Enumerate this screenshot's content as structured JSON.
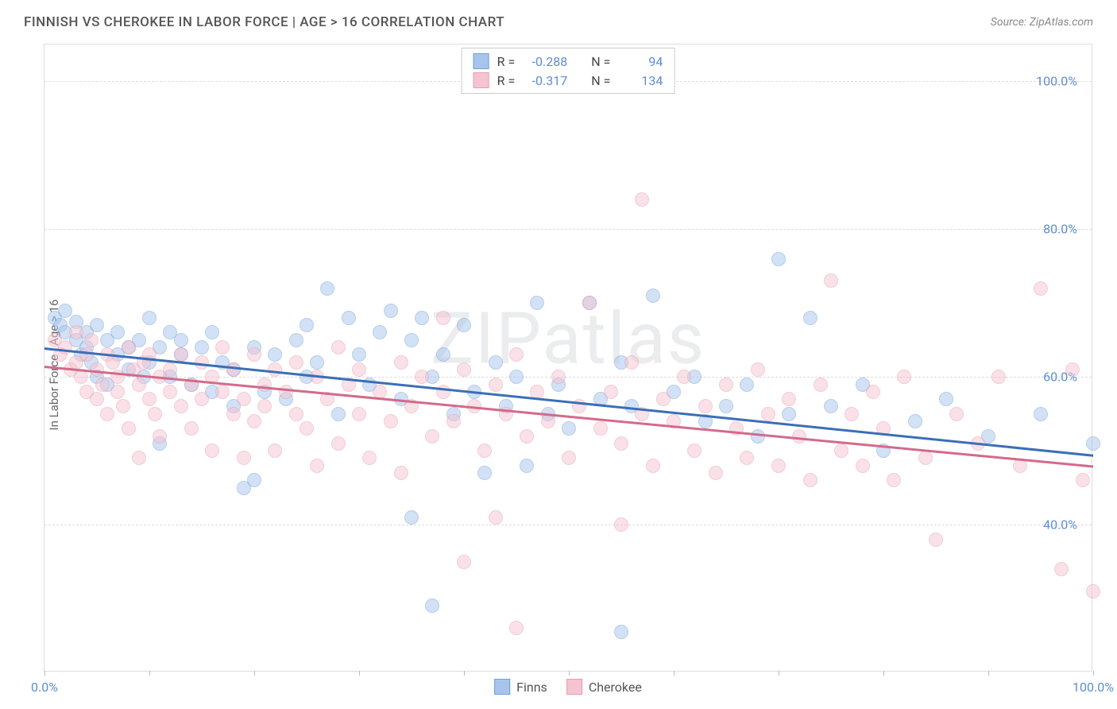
{
  "title": "FINNISH VS CHEROKEE IN LABOR FORCE | AGE > 16 CORRELATION CHART",
  "source_label": "Source: ",
  "source_name": "ZipAtlas.com",
  "ylabel": "In Labor Force | Age > 16",
  "watermark": "ZIPatlas",
  "chart": {
    "type": "scatter",
    "xlim": [
      0,
      100
    ],
    "ylim": [
      20,
      105
    ],
    "x_ticks": [
      0,
      10,
      20,
      30,
      40,
      50,
      60,
      70,
      80,
      90,
      100
    ],
    "x_tick_labels_shown": {
      "0": "0.0%",
      "100": "100.0%"
    },
    "y_gridlines": [
      40,
      60,
      80,
      100
    ],
    "y_tick_labels": {
      "40": "40.0%",
      "60": "60.0%",
      "80": "80.0%",
      "100": "100.0%"
    },
    "background_color": "#ffffff",
    "grid_color": "#dddddd",
    "point_radius": 9,
    "point_opacity": 0.5,
    "series": [
      {
        "name": "Finns",
        "color_fill": "#a7c5ec",
        "color_stroke": "#6f9fd8",
        "line_color": "#3a6fb7",
        "R": "-0.288",
        "N": "94",
        "trend": {
          "x1": 0,
          "y1": 64,
          "x2": 100,
          "y2": 49.5
        },
        "points": [
          [
            1,
            68
          ],
          [
            1.5,
            67
          ],
          [
            2,
            66
          ],
          [
            2,
            69
          ],
          [
            3,
            65
          ],
          [
            3,
            67.5
          ],
          [
            3.5,
            63
          ],
          [
            4,
            66
          ],
          [
            4,
            64
          ],
          [
            4.5,
            62
          ],
          [
            5,
            67
          ],
          [
            5,
            60
          ],
          [
            6,
            65
          ],
          [
            6,
            59
          ],
          [
            7,
            63
          ],
          [
            7,
            66
          ],
          [
            8,
            64
          ],
          [
            8,
            61
          ],
          [
            9,
            65
          ],
          [
            9.5,
            60
          ],
          [
            10,
            68
          ],
          [
            10,
            62
          ],
          [
            11,
            64
          ],
          [
            11,
            51
          ],
          [
            12,
            66
          ],
          [
            12,
            60
          ],
          [
            13,
            65
          ],
          [
            13,
            63
          ],
          [
            14,
            59
          ],
          [
            15,
            64
          ],
          [
            16,
            66
          ],
          [
            16,
            58
          ],
          [
            17,
            62
          ],
          [
            18,
            61
          ],
          [
            18,
            56
          ],
          [
            19,
            45
          ],
          [
            20,
            46
          ],
          [
            20,
            64
          ],
          [
            21,
            58
          ],
          [
            22,
            63
          ],
          [
            23,
            57
          ],
          [
            24,
            65
          ],
          [
            25,
            67
          ],
          [
            25,
            60
          ],
          [
            26,
            62
          ],
          [
            27,
            72
          ],
          [
            28,
            55
          ],
          [
            29,
            68
          ],
          [
            30,
            63
          ],
          [
            31,
            59
          ],
          [
            32,
            66
          ],
          [
            33,
            69
          ],
          [
            34,
            57
          ],
          [
            35,
            65
          ],
          [
            35,
            41
          ],
          [
            36,
            68
          ],
          [
            37,
            60
          ],
          [
            37,
            29
          ],
          [
            38,
            63
          ],
          [
            39,
            55
          ],
          [
            40,
            67
          ],
          [
            41,
            58
          ],
          [
            42,
            47
          ],
          [
            43,
            62
          ],
          [
            44,
            56
          ],
          [
            45,
            60
          ],
          [
            46,
            48
          ],
          [
            47,
            70
          ],
          [
            48,
            55
          ],
          [
            49,
            59
          ],
          [
            50,
            53
          ],
          [
            52,
            70
          ],
          [
            53,
            57
          ],
          [
            55,
            62
          ],
          [
            55,
            25.5
          ],
          [
            56,
            56
          ],
          [
            58,
            71
          ],
          [
            60,
            58
          ],
          [
            62,
            60
          ],
          [
            63,
            54
          ],
          [
            65,
            56
          ],
          [
            67,
            59
          ],
          [
            68,
            52
          ],
          [
            70,
            76
          ],
          [
            71,
            55
          ],
          [
            73,
            68
          ],
          [
            75,
            56
          ],
          [
            78,
            59
          ],
          [
            80,
            50
          ],
          [
            83,
            54
          ],
          [
            86,
            57
          ],
          [
            90,
            52
          ],
          [
            95,
            55
          ],
          [
            100,
            51
          ]
        ]
      },
      {
        "name": "Cherokee",
        "color_fill": "#f5c4d0",
        "color_stroke": "#e89ab0",
        "line_color": "#d46a8a",
        "R": "-0.317",
        "N": "134",
        "trend": {
          "x1": 0,
          "y1": 61.5,
          "x2": 100,
          "y2": 48
        },
        "points": [
          [
            1,
            65
          ],
          [
            1.5,
            63
          ],
          [
            2,
            64
          ],
          [
            2.5,
            61
          ],
          [
            3,
            62
          ],
          [
            3,
            66
          ],
          [
            3.5,
            60
          ],
          [
            4,
            63
          ],
          [
            4,
            58
          ],
          [
            4.5,
            65
          ],
          [
            5,
            61
          ],
          [
            5,
            57
          ],
          [
            5.5,
            59
          ],
          [
            6,
            63
          ],
          [
            6,
            55
          ],
          [
            6.5,
            62
          ],
          [
            7,
            58
          ],
          [
            7,
            60
          ],
          [
            7.5,
            56
          ],
          [
            8,
            64
          ],
          [
            8,
            53
          ],
          [
            8.5,
            61
          ],
          [
            9,
            59
          ],
          [
            9,
            49
          ],
          [
            9.5,
            62
          ],
          [
            10,
            57
          ],
          [
            10,
            63
          ],
          [
            10.5,
            55
          ],
          [
            11,
            60
          ],
          [
            11,
            52
          ],
          [
            12,
            58
          ],
          [
            12,
            61
          ],
          [
            13,
            56
          ],
          [
            13,
            63
          ],
          [
            14,
            59
          ],
          [
            14,
            53
          ],
          [
            15,
            62
          ],
          [
            15,
            57
          ],
          [
            16,
            60
          ],
          [
            16,
            50
          ],
          [
            17,
            58
          ],
          [
            17,
            64
          ],
          [
            18,
            55
          ],
          [
            18,
            61
          ],
          [
            19,
            57
          ],
          [
            19,
            49
          ],
          [
            20,
            63
          ],
          [
            20,
            54
          ],
          [
            21,
            59
          ],
          [
            21,
            56
          ],
          [
            22,
            61
          ],
          [
            22,
            50
          ],
          [
            23,
            58
          ],
          [
            24,
            55
          ],
          [
            24,
            62
          ],
          [
            25,
            53
          ],
          [
            26,
            60
          ],
          [
            26,
            48
          ],
          [
            27,
            57
          ],
          [
            28,
            64
          ],
          [
            28,
            51
          ],
          [
            29,
            59
          ],
          [
            30,
            55
          ],
          [
            30,
            61
          ],
          [
            31,
            49
          ],
          [
            32,
            58
          ],
          [
            33,
            54
          ],
          [
            34,
            62
          ],
          [
            34,
            47
          ],
          [
            35,
            56
          ],
          [
            36,
            60
          ],
          [
            37,
            52
          ],
          [
            38,
            58
          ],
          [
            38,
            68
          ],
          [
            39,
            54
          ],
          [
            40,
            61
          ],
          [
            40,
            35
          ],
          [
            41,
            56
          ],
          [
            42,
            50
          ],
          [
            43,
            59
          ],
          [
            43,
            41
          ],
          [
            44,
            55
          ],
          [
            45,
            63
          ],
          [
            45,
            26
          ],
          [
            46,
            52
          ],
          [
            47,
            58
          ],
          [
            48,
            54
          ],
          [
            49,
            60
          ],
          [
            50,
            49
          ],
          [
            51,
            56
          ],
          [
            52,
            70
          ],
          [
            53,
            53
          ],
          [
            54,
            58
          ],
          [
            55,
            51
          ],
          [
            55,
            40
          ],
          [
            56,
            62
          ],
          [
            57,
            55
          ],
          [
            57,
            84
          ],
          [
            58,
            48
          ],
          [
            59,
            57
          ],
          [
            60,
            54
          ],
          [
            61,
            60
          ],
          [
            62,
            50
          ],
          [
            63,
            56
          ],
          [
            64,
            47
          ],
          [
            65,
            59
          ],
          [
            66,
            53
          ],
          [
            67,
            49
          ],
          [
            68,
            61
          ],
          [
            69,
            55
          ],
          [
            70,
            48
          ],
          [
            71,
            57
          ],
          [
            72,
            52
          ],
          [
            73,
            46
          ],
          [
            74,
            59
          ],
          [
            75,
            73
          ],
          [
            76,
            50
          ],
          [
            77,
            55
          ],
          [
            78,
            48
          ],
          [
            79,
            58
          ],
          [
            80,
            53
          ],
          [
            81,
            46
          ],
          [
            82,
            60
          ],
          [
            84,
            49
          ],
          [
            85,
            38
          ],
          [
            87,
            55
          ],
          [
            89,
            51
          ],
          [
            91,
            60
          ],
          [
            93,
            48
          ],
          [
            95,
            72
          ],
          [
            97,
            34
          ],
          [
            98,
            61
          ],
          [
            99,
            46
          ],
          [
            100,
            31
          ]
        ]
      }
    ]
  },
  "legend": {
    "series1_label": "Finns",
    "series2_label": "Cherokee"
  },
  "stats_box": {
    "r_label": "R =",
    "n_label": "N ="
  }
}
